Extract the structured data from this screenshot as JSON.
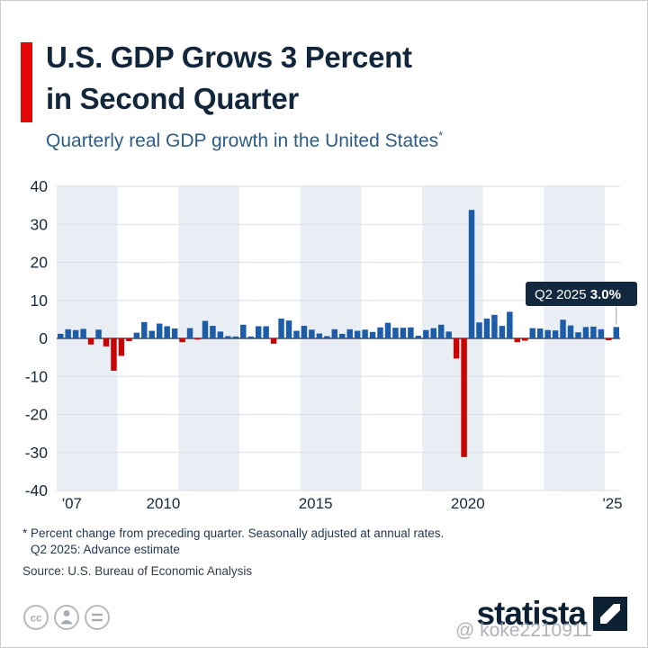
{
  "header": {
    "title_line1": "U.S. GDP Grows 3 Percent",
    "title_line2": "in Second Quarter",
    "subtitle": "Quarterly real GDP growth in the United States",
    "subtitle_sup": "*"
  },
  "chart_data": {
    "type": "bar",
    "title": "Quarterly real GDP growth in the United States",
    "ylabel": "Percent change from preceding quarter",
    "ylim": [
      -40,
      40
    ],
    "y_ticks": [
      40,
      30,
      20,
      10,
      0,
      -10,
      -20,
      -30,
      -40
    ],
    "x_ticks": [
      {
        "label": "'07",
        "year_index": 0
      },
      {
        "label": "2010",
        "year_index": 3
      },
      {
        "label": "2015",
        "year_index": 8
      },
      {
        "label": "2020",
        "year_index": 13
      },
      {
        "label": "'25",
        "year_index": 18
      }
    ],
    "years": [
      {
        "year": 2007,
        "values": [
          1.2,
          2.4,
          2.2,
          2.5
        ]
      },
      {
        "year": 2008,
        "values": [
          -1.6,
          2.3,
          -2.1,
          -8.5
        ]
      },
      {
        "year": 2009,
        "values": [
          -4.6,
          -0.7,
          1.5,
          4.3
        ]
      },
      {
        "year": 2010,
        "values": [
          2.0,
          3.9,
          3.2,
          2.6
        ]
      },
      {
        "year": 2011,
        "values": [
          -1.0,
          2.7,
          -0.2,
          4.6
        ]
      },
      {
        "year": 2012,
        "values": [
          3.3,
          1.8,
          0.6,
          0.5
        ]
      },
      {
        "year": 2013,
        "values": [
          3.6,
          0.5,
          3.2,
          3.2
        ]
      },
      {
        "year": 2014,
        "values": [
          -1.4,
          5.2,
          4.7,
          2.0
        ]
      },
      {
        "year": 2015,
        "values": [
          3.3,
          2.3,
          1.3,
          0.6
        ]
      },
      {
        "year": 2016,
        "values": [
          2.4,
          1.2,
          2.4,
          2.0
        ]
      },
      {
        "year": 2017,
        "values": [
          2.3,
          1.7,
          2.9,
          4.1
        ]
      },
      {
        "year": 2018,
        "values": [
          2.8,
          2.8,
          2.9,
          0.7
        ]
      },
      {
        "year": 2019,
        "values": [
          2.2,
          2.7,
          3.6,
          1.8
        ]
      },
      {
        "year": 2020,
        "values": [
          -5.3,
          -31.2,
          33.8,
          4.2
        ]
      },
      {
        "year": 2021,
        "values": [
          5.2,
          6.2,
          3.3,
          7.0
        ]
      },
      {
        "year": 2022,
        "values": [
          -1.0,
          -0.6,
          2.7,
          2.6
        ]
      },
      {
        "year": 2023,
        "values": [
          2.2,
          2.1,
          4.9,
          3.4
        ]
      },
      {
        "year": 2024,
        "values": [
          1.6,
          3.0,
          3.1,
          2.4
        ]
      },
      {
        "year": 2025,
        "values": [
          -0.5,
          3.0
        ]
      }
    ],
    "annotation": {
      "label": "Q2 2025",
      "value_text": "3.0%",
      "value_num": 3.0
    },
    "colors": {
      "positive": "#1d5ca8",
      "negative": "#c70505",
      "band": "#e9edf4",
      "grid": "#d9dee8",
      "zero_line": "#3d4a5c",
      "axis_text": "#16293e",
      "annotation_bg": "#12283e",
      "accent_red": "#e10707",
      "title_navy": "#13273c"
    },
    "legend": null,
    "grid": true
  },
  "footnotes": [
    "* Percent change from preceding quarter. Seasonally adjusted at annual rates.",
    "Q2 2025: Advance estimate"
  ],
  "source": "Source: U.S. Bureau of Economic Analysis",
  "footer": {
    "logo_text": "statista",
    "watermark": "@ koke2210911",
    "license_icons": [
      "cc",
      "attribution-person",
      "no-derivatives-equals"
    ]
  }
}
